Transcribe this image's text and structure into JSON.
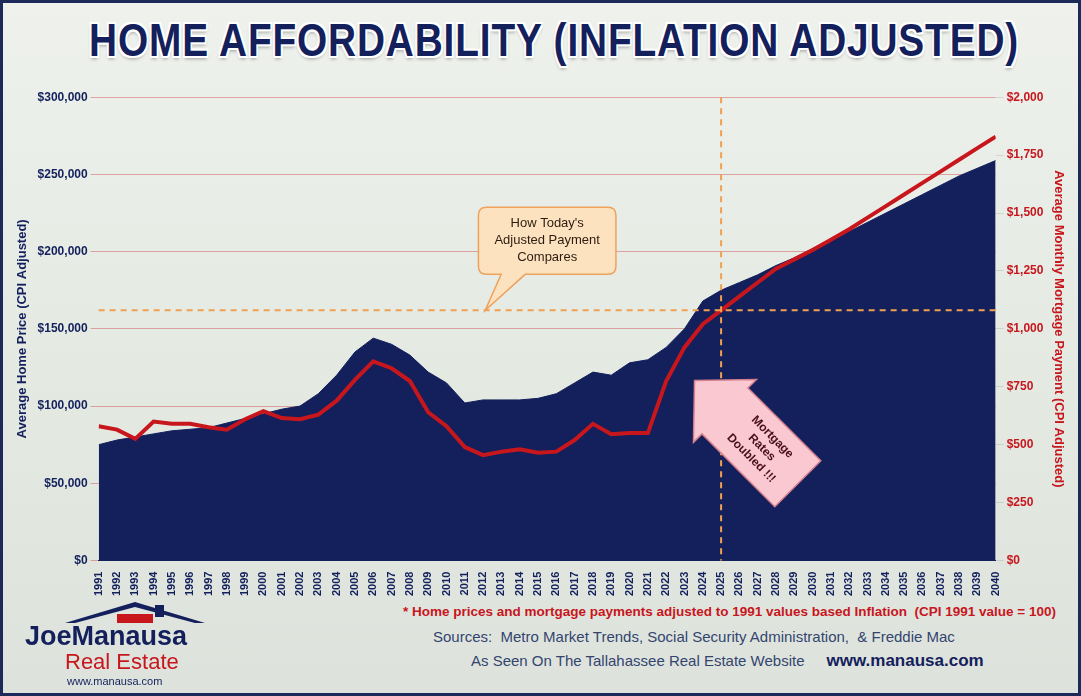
{
  "chart_data": {
    "type": "line",
    "title": "HOME AFFORDABILITY (INFLATION ADJUSTED)",
    "y_label": "Average Home Price (CPI Adjusted)",
    "y2_label": "Average Monthly Mortgage Payment (CPI Adjusted)",
    "categories": [
      "1991",
      "1992",
      "1993",
      "1994",
      "1995",
      "1996",
      "1997",
      "1998",
      "1999",
      "2000",
      "2001",
      "2002",
      "2003",
      "2004",
      "2005",
      "2006",
      "2007",
      "2008",
      "2009",
      "2010",
      "2011",
      "2012",
      "2013",
      "2014",
      "2015",
      "2016",
      "2017",
      "2018",
      "2019",
      "2020",
      "2021",
      "2022",
      "2023",
      "2024",
      "2025",
      "2026",
      "2027",
      "2028",
      "2029",
      "2030",
      "2031",
      "2032",
      "2033",
      "2034",
      "2035",
      "2036",
      "2037",
      "2038",
      "2039",
      "2040"
    ],
    "series": [
      {
        "type": "area",
        "color": "#13205c",
        "values": [
          75000,
          78000,
          80000,
          82000,
          84000,
          85000,
          86000,
          89000,
          92000,
          95000,
          98000,
          100000,
          108000,
          120000,
          135000,
          144000,
          140000,
          133000,
          122000,
          115000,
          102000,
          104000,
          104000,
          104000,
          105000,
          108000,
          115000,
          122000,
          120000,
          128000,
          130000,
          138000,
          150000,
          168000,
          175000,
          180000,
          185000,
          191000,
          196000,
          202000,
          207000,
          213000,
          219000,
          225000,
          231000,
          237000,
          243000,
          249000,
          254000,
          259000
        ]
      },
      {
        "type": "line",
        "color": "#c8161d",
        "axis": "y2",
        "values": [
          580,
          565,
          525,
          600,
          590,
          590,
          575,
          565,
          610,
          645,
          615,
          610,
          630,
          690,
          780,
          860,
          830,
          775,
          640,
          580,
          490,
          455,
          470,
          480,
          465,
          470,
          520,
          590,
          545,
          550,
          550,
          775,
          920,
          1020,
          1080,
          1140,
          1200,
          1260,
          1300,
          1340,
          1385,
          1430,
          1480,
          1530,
          1580,
          1630,
          1680,
          1730,
          1780,
          1830
        ]
      }
    ],
    "ylim": [
      0,
      300000
    ],
    "yticks": [
      {
        "value": 0,
        "label": "$0"
      },
      {
        "value": 50000,
        "label": "$50,000"
      },
      {
        "value": 100000,
        "label": "$100,000"
      },
      {
        "value": 150000,
        "label": "$150,000"
      },
      {
        "value": 200000,
        "label": "$200,000"
      },
      {
        "value": 250000,
        "label": "$250,000"
      },
      {
        "value": 300000,
        "label": "$300,000"
      }
    ],
    "y2lim": [
      0,
      2000
    ],
    "y2ticks": [
      {
        "value": 0,
        "label": "$0"
      },
      {
        "value": 250,
        "label": "$250"
      },
      {
        "value": 500,
        "label": "$500"
      },
      {
        "value": 750,
        "label": "$750"
      },
      {
        "value": 1000,
        "label": "$1,000"
      },
      {
        "value": 1250,
        "label": "$1,250"
      },
      {
        "value": 1500,
        "label": "$1,500"
      },
      {
        "value": 1750,
        "label": "$1,750"
      },
      {
        "value": 2000,
        "label": "$2,000"
      }
    ],
    "grid": true,
    "reference_lines": [
      {
        "axis": "x",
        "value": "2025"
      },
      {
        "axis": "y2",
        "value": 1080
      }
    ],
    "annotations": [
      {
        "text": "How Today's Adjusted Payment Compares"
      },
      {
        "text": "Mortgage Rates Doubled !!!"
      }
    ],
    "footnote": "* Home prices and mortgage payments adjusted to 1991 values based Inflation  (CPI 1991 value = 100)",
    "sources": "Sources:  Metro Market Trends, Social Security Administration,  & Freddie Mac",
    "website_note": "As Seen On The Tallahassee Real Estate Website",
    "website": "www.manausa.com"
  },
  "logo": {
    "name": "JoeManausa",
    "tagline": "Real Estate",
    "url": "www.manausa.com"
  }
}
